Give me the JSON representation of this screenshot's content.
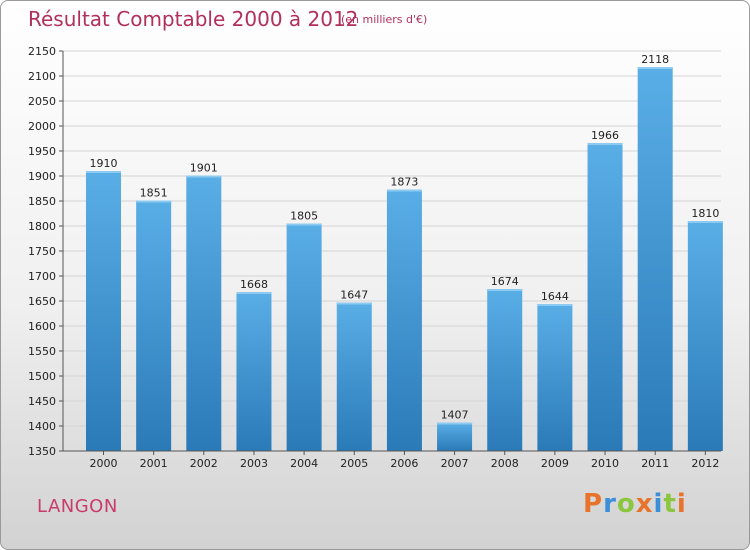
{
  "header": {
    "title": "Résultat Comptable 2000 à 2012",
    "subtitle": "(en milliers d'€)"
  },
  "footer": {
    "city": "LANGON",
    "brand": "Proxiti"
  },
  "colors": {
    "bar_light": "#5aaee6",
    "bar_dark": "#2a7ab8",
    "title": "#b0305a",
    "city": "#c83c6c",
    "brand_letters": [
      "#e8732a",
      "#3a8fd8",
      "#8cc63f",
      "#e8732a",
      "#3a8fd8",
      "#8cc63f",
      "#e8732a"
    ]
  },
  "chart_data": {
    "type": "bar",
    "title": "Résultat Comptable 2000 à 2012",
    "subtitle": "(en milliers d'€)",
    "categories": [
      "2000",
      "2001",
      "2002",
      "2003",
      "2004",
      "2005",
      "2006",
      "2007",
      "2008",
      "2009",
      "2010",
      "2011",
      "2012"
    ],
    "values": [
      1910,
      1851,
      1901,
      1668,
      1805,
      1647,
      1873,
      1407,
      1674,
      1644,
      1966,
      2118,
      1810
    ],
    "ylim": [
      1350,
      2150
    ],
    "yticks": [
      1350,
      1400,
      1450,
      1500,
      1550,
      1600,
      1650,
      1700,
      1750,
      1800,
      1850,
      1900,
      1950,
      2000,
      2050,
      2100,
      2150
    ],
    "grid": true,
    "data_labels": true
  }
}
